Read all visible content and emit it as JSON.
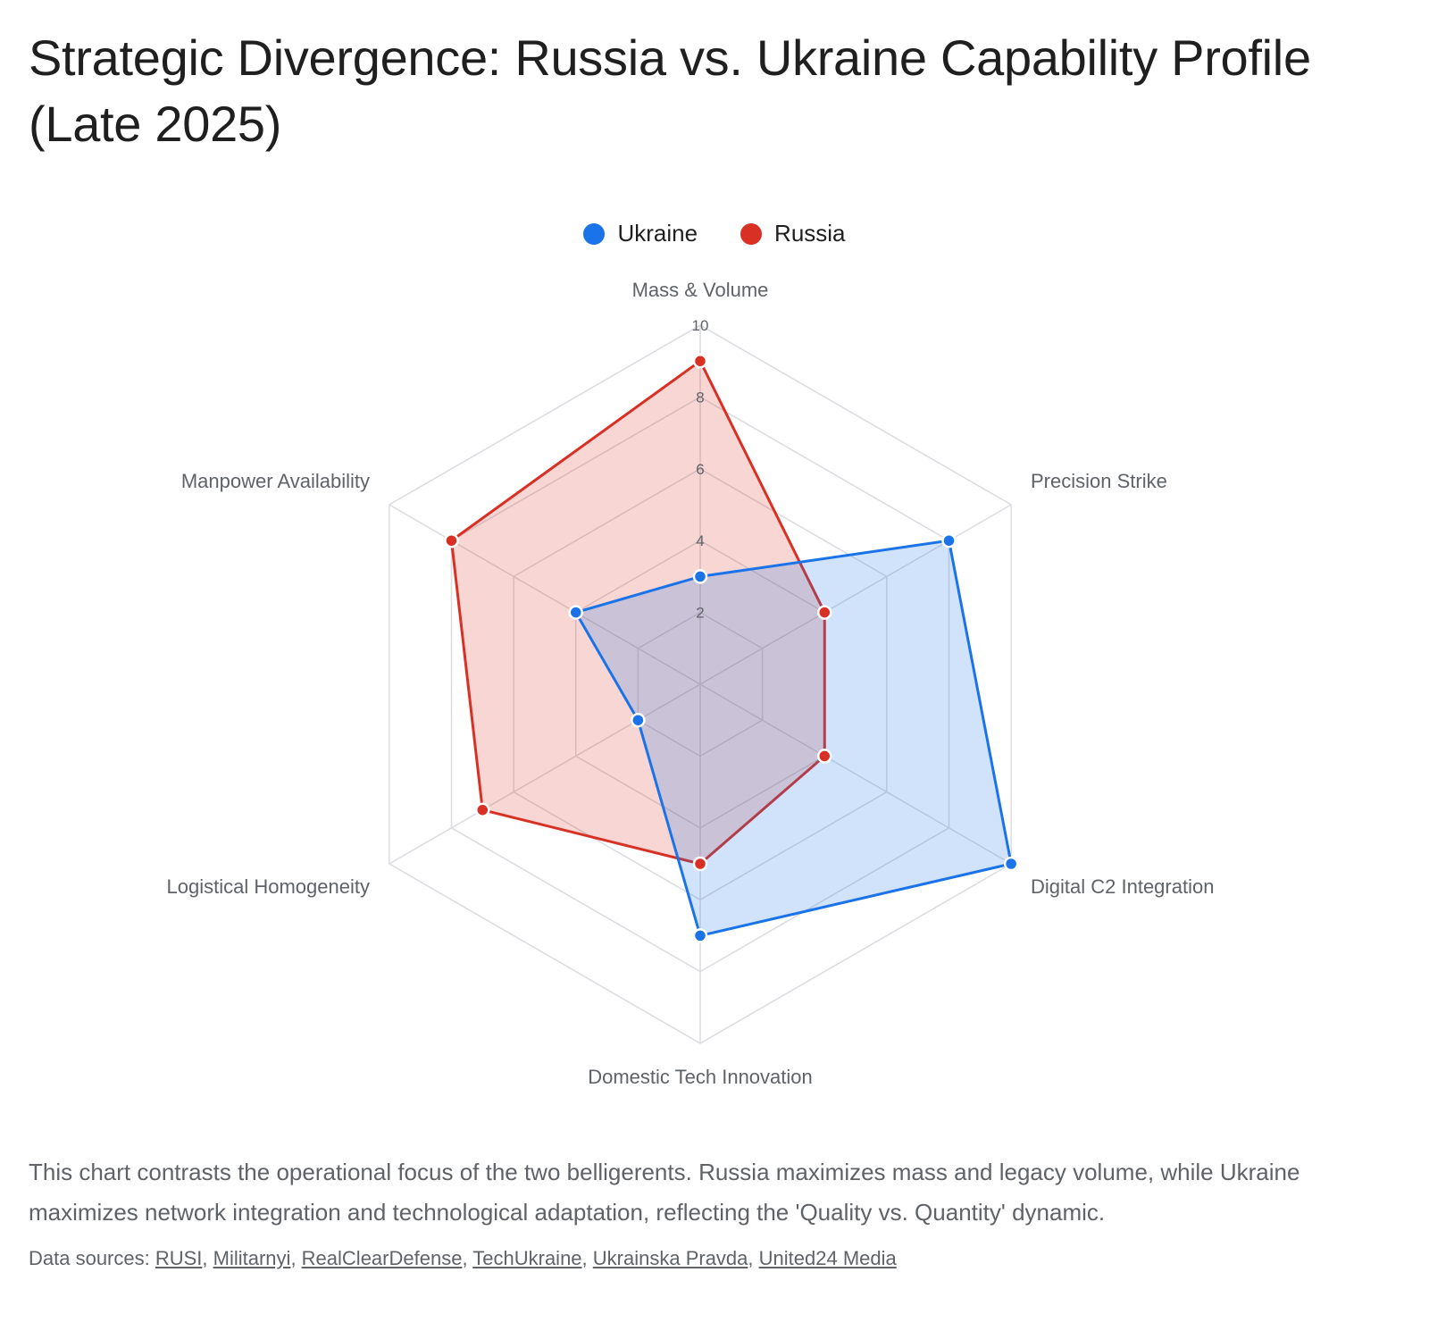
{
  "title": "Strategic Divergence: Russia vs. Ukraine Capability Profile (Late 2025)",
  "description": "This chart contrasts the operational focus of the two belligerents. Russia maximizes mass and legacy volume, while Ukraine maximizes network integration and technological adaptation, reflecting the 'Quality vs. Quantity' dynamic.",
  "sources": {
    "prefix": "Data sources: ",
    "links": [
      "RUSI",
      "Militarnyi",
      "RealClearDefense",
      "TechUkraine",
      "Ukrainska Pravda",
      "United24 Media"
    ]
  },
  "colors": {
    "ukraine": "#1a73e8",
    "russia": "#d93025",
    "grid": "#dadce0"
  },
  "chart_data": {
    "type": "radar",
    "axes": [
      "Mass & Volume",
      "Precision Strike",
      "Digital C2 Integration",
      "Domestic Tech Innovation",
      "Logistical Homogeneity",
      "Manpower Availability"
    ],
    "range": [
      0,
      10
    ],
    "ticks": [
      "2",
      "4",
      "6",
      "8",
      "10"
    ],
    "legend_position": "top-center",
    "series": [
      {
        "name": "Ukraine",
        "values": [
          3,
          8,
          10,
          7,
          2,
          4
        ]
      },
      {
        "name": "Russia",
        "values": [
          9,
          4,
          4,
          5,
          7,
          8
        ]
      }
    ]
  }
}
